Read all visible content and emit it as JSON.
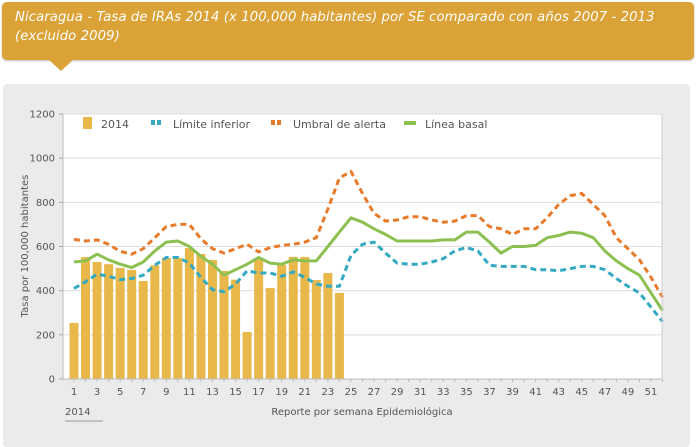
{
  "header": {
    "title": "Nicaragua - Tasa de IRAs 2014 (x 100,000 habitantes) por SE comparado con años 2007 - 2013 (excluido 2009)"
  },
  "colors": {
    "banner": "#dba337",
    "bars": "#e8b84a",
    "limite_inferior": "#35a9c1",
    "umbral_alerta": "#e77b2c",
    "linea_basal": "#8cc152"
  },
  "chart_data": {
    "type": "bar",
    "title": "Nicaragua - Tasa de IRAs 2014 (x 100,000 habitantes) por SE comparado con años 2007 - 2013 (excluido 2009)",
    "xlabel": "Reporte por semana Epidemiológica",
    "xlabel_secondary": "2014",
    "ylabel": "Tasa por 100,000 habitantes",
    "ylim": [
      0,
      1200
    ],
    "yticks": [
      0,
      200,
      400,
      600,
      800,
      1000,
      1200
    ],
    "xlim": [
      1,
      52
    ],
    "xtick_labels": [
      "1",
      "3",
      "5",
      "7",
      "9",
      "11",
      "13",
      "15",
      "17",
      "19",
      "21",
      "23",
      "25",
      "27",
      "29",
      "31",
      "33",
      "35",
      "37",
      "39",
      "41",
      "43",
      "45",
      "47",
      "49",
      "51"
    ],
    "grid": true,
    "legend_position": "top-left",
    "legend": [
      "2014",
      "Límite inferior",
      "Umbral de alerta",
      "Línea basal"
    ],
    "bars": {
      "name": "2014",
      "x": [
        1,
        2,
        3,
        4,
        5,
        6,
        7,
        8,
        9,
        10,
        11,
        12,
        13,
        14,
        15,
        16,
        17,
        18,
        19,
        20,
        21,
        22,
        23,
        24
      ],
      "values": [
        254,
        552,
        530,
        520,
        503,
        494,
        444,
        515,
        548,
        548,
        593,
        566,
        539,
        489,
        450,
        213,
        548,
        412,
        516,
        553,
        553,
        448,
        480,
        390
      ]
    },
    "series": [
      {
        "name": "Límite inferior",
        "style": "dashed",
        "x": [
          1,
          2,
          3,
          4,
          5,
          6,
          7,
          8,
          9,
          10,
          11,
          12,
          13,
          14,
          15,
          16,
          17,
          18,
          19,
          20,
          21,
          22,
          23,
          24,
          25,
          26,
          27,
          28,
          29,
          30,
          31,
          32,
          33,
          34,
          35,
          36,
          37,
          38,
          39,
          40,
          41,
          42,
          43,
          44,
          45,
          46,
          47,
          48,
          49,
          50,
          51,
          52
        ],
        "values": [
          410,
          440,
          475,
          465,
          450,
          455,
          470,
          515,
          550,
          550,
          525,
          460,
          405,
          395,
          430,
          490,
          480,
          480,
          465,
          485,
          460,
          430,
          420,
          420,
          560,
          610,
          620,
          570,
          525,
          520,
          520,
          530,
          545,
          580,
          595,
          580,
          515,
          510,
          510,
          510,
          495,
          495,
          490,
          500,
          510,
          510,
          495,
          455,
          420,
          390,
          325,
          260
        ]
      },
      {
        "name": "Umbral de alerta",
        "style": "dashed",
        "x": [
          1,
          2,
          3,
          4,
          5,
          6,
          7,
          8,
          9,
          10,
          11,
          12,
          13,
          14,
          15,
          16,
          17,
          18,
          19,
          20,
          21,
          22,
          23,
          24,
          25,
          26,
          27,
          28,
          29,
          30,
          31,
          32,
          33,
          34,
          35,
          36,
          37,
          38,
          39,
          40,
          41,
          42,
          43,
          44,
          45,
          46,
          47,
          48,
          49,
          50,
          51,
          52
        ],
        "values": [
          632,
          625,
          630,
          610,
          578,
          565,
          590,
          640,
          690,
          700,
          700,
          635,
          590,
          570,
          590,
          610,
          575,
          595,
          605,
          610,
          620,
          640,
          770,
          910,
          940,
          840,
          750,
          715,
          720,
          735,
          735,
          720,
          710,
          715,
          740,
          740,
          690,
          680,
          655,
          680,
          680,
          730,
          790,
          830,
          840,
          790,
          740,
          640,
          590,
          540,
          460,
          370
        ]
      },
      {
        "name": "Línea basal",
        "style": "solid",
        "x": [
          1,
          2,
          3,
          4,
          5,
          6,
          7,
          8,
          9,
          10,
          11,
          12,
          13,
          14,
          15,
          16,
          17,
          18,
          19,
          20,
          21,
          22,
          23,
          24,
          25,
          26,
          27,
          28,
          29,
          30,
          31,
          32,
          33,
          34,
          35,
          36,
          37,
          38,
          39,
          40,
          41,
          42,
          43,
          44,
          45,
          46,
          47,
          48,
          49,
          50,
          51,
          52
        ],
        "values": [
          530,
          535,
          565,
          540,
          520,
          505,
          530,
          580,
          620,
          625,
          600,
          555,
          520,
          470,
          495,
          520,
          550,
          525,
          520,
          540,
          535,
          535,
          600,
          665,
          730,
          710,
          680,
          655,
          625,
          625,
          625,
          625,
          630,
          630,
          665,
          665,
          620,
          570,
          600,
          600,
          605,
          640,
          650,
          665,
          660,
          640,
          580,
          535,
          500,
          470,
          390,
          310
        ]
      }
    ]
  }
}
